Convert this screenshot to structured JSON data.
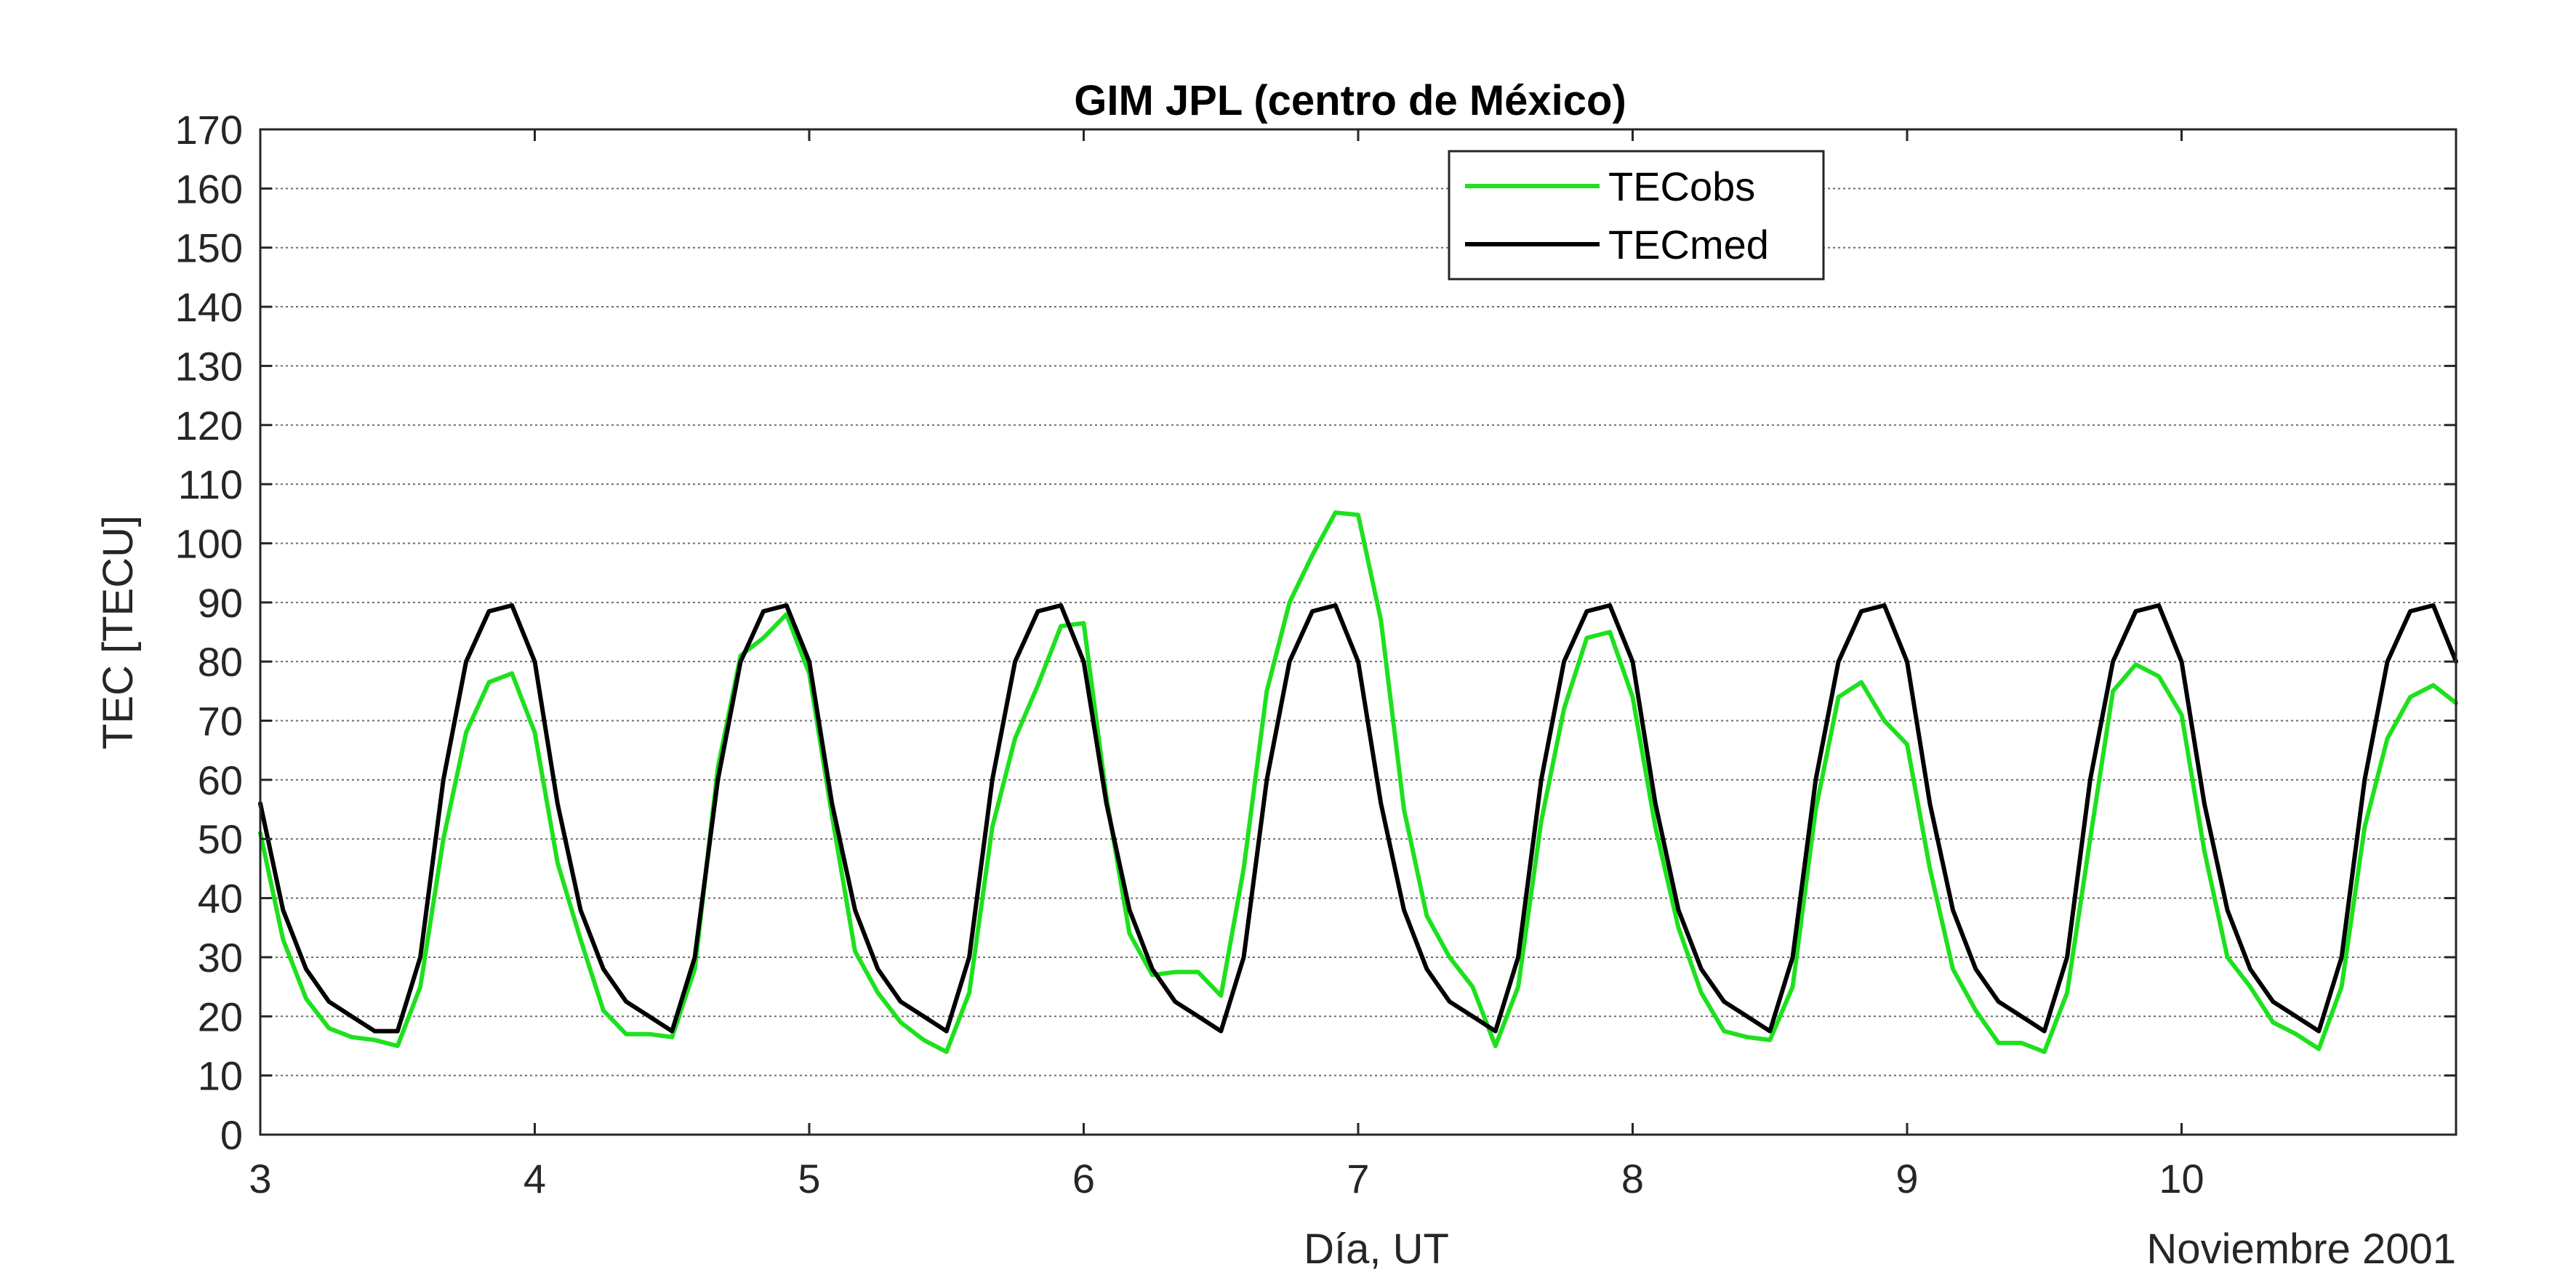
{
  "chart_data": {
    "type": "line",
    "title": "GIM JPL (centro de México)",
    "xlabel": "Día, UT",
    "xlabel_secondary": "Noviembre 2001",
    "ylabel": "TEC [TECU]",
    "xlim": [
      3,
      11
    ],
    "ylim": [
      0,
      170
    ],
    "xticks": [
      3,
      4,
      5,
      6,
      7,
      8,
      9,
      10
    ],
    "yticks": [
      0,
      10,
      20,
      30,
      40,
      50,
      60,
      70,
      80,
      90,
      100,
      110,
      120,
      130,
      140,
      150,
      160,
      170
    ],
    "grid": "horizontal",
    "legend_position": "top-center",
    "series": [
      {
        "name": "TECobs",
        "color": "#1ee01e",
        "x": [
          3.0,
          3.083,
          3.167,
          3.25,
          3.333,
          3.417,
          3.5,
          3.583,
          3.667,
          3.75,
          3.833,
          3.917,
          4.0,
          4.083,
          4.167,
          4.25,
          4.333,
          4.417,
          4.5,
          4.583,
          4.667,
          4.75,
          4.833,
          4.917,
          5.0,
          5.083,
          5.167,
          5.25,
          5.333,
          5.417,
          5.5,
          5.583,
          5.667,
          5.75,
          5.833,
          5.917,
          6.0,
          6.083,
          6.167,
          6.25,
          6.333,
          6.417,
          6.5,
          6.583,
          6.667,
          6.75,
          6.833,
          6.917,
          7.0,
          7.083,
          7.167,
          7.25,
          7.333,
          7.417,
          7.5,
          7.583,
          7.667,
          7.75,
          7.833,
          7.917,
          8.0,
          8.083,
          8.167,
          8.25,
          8.333,
          8.417,
          8.5,
          8.583,
          8.667,
          8.75,
          8.833,
          8.917,
          9.0,
          9.083,
          9.167,
          9.25,
          9.333,
          9.417,
          9.5,
          9.583,
          9.667,
          9.75,
          9.833,
          9.917,
          10.0,
          10.083,
          10.167,
          10.25,
          10.333,
          10.417,
          10.5,
          10.583,
          10.667,
          10.75,
          10.833,
          10.917,
          11.0
        ],
        "y": [
          51,
          33,
          23,
          18,
          16.5,
          16,
          15,
          25,
          50,
          68,
          76.5,
          78,
          68,
          46,
          33,
          21,
          17,
          17,
          16.5,
          28,
          62,
          81,
          84,
          88,
          78,
          54,
          31,
          24,
          19,
          16,
          14,
          24,
          52,
          67,
          76,
          86,
          86.5,
          57,
          34,
          27,
          27.5,
          27.5,
          23.5,
          45,
          75,
          90,
          98,
          105.2,
          104.8,
          87,
          55,
          37,
          30,
          25,
          15,
          25,
          53,
          72,
          84,
          85,
          74,
          52,
          35,
          24,
          17.5,
          16.5,
          16,
          25,
          55,
          74,
          76.5,
          70,
          66,
          45,
          28,
          21,
          15.5,
          15.5,
          14,
          24,
          50,
          75,
          79.5,
          77.5,
          71,
          48,
          30,
          25,
          19,
          17,
          14.5,
          25,
          52,
          67,
          74,
          76,
          73
        ]
      },
      {
        "name": "TECmed",
        "color": "#000000",
        "x": [
          3.0,
          3.083,
          3.167,
          3.25,
          3.333,
          3.417,
          3.5,
          3.583,
          3.667,
          3.75,
          3.833,
          3.917,
          4.0,
          4.083,
          4.167,
          4.25,
          4.333,
          4.417,
          4.5,
          4.583,
          4.667,
          4.75,
          4.833,
          4.917,
          5.0,
          5.083,
          5.167,
          5.25,
          5.333,
          5.417,
          5.5,
          5.583,
          5.667,
          5.75,
          5.833,
          5.917,
          6.0,
          6.083,
          6.167,
          6.25,
          6.333,
          6.417,
          6.5,
          6.583,
          6.667,
          6.75,
          6.833,
          6.917,
          7.0,
          7.083,
          7.167,
          7.25,
          7.333,
          7.417,
          7.5,
          7.583,
          7.667,
          7.75,
          7.833,
          7.917,
          8.0,
          8.083,
          8.167,
          8.25,
          8.333,
          8.417,
          8.5,
          8.583,
          8.667,
          8.75,
          8.833,
          8.917,
          9.0,
          9.083,
          9.167,
          9.25,
          9.333,
          9.417,
          9.5,
          9.583,
          9.667,
          9.75,
          9.833,
          9.917,
          10.0,
          10.083,
          10.167,
          10.25,
          10.333,
          10.417,
          10.5,
          10.583,
          10.667,
          10.75,
          10.833,
          10.917,
          11.0
        ],
        "y": [
          56,
          38,
          28,
          22.5,
          20,
          17.5,
          17.5,
          30,
          60,
          80,
          88.5,
          89.5,
          80,
          56,
          38,
          28,
          22.5,
          20,
          17.5,
          30,
          60,
          80,
          88.5,
          89.5,
          80,
          56,
          38,
          28,
          22.5,
          20,
          17.5,
          30,
          60,
          80,
          88.5,
          89.5,
          80,
          56,
          38,
          28,
          22.5,
          20,
          17.5,
          30,
          60,
          80,
          88.5,
          89.5,
          80,
          56,
          38,
          28,
          22.5,
          20,
          17.5,
          30,
          60,
          80,
          88.5,
          89.5,
          80,
          56,
          38,
          28,
          22.5,
          20,
          17.5,
          30,
          60,
          80,
          88.5,
          89.5,
          80,
          56,
          38,
          28,
          22.5,
          20,
          17.5,
          30,
          60,
          80,
          88.5,
          89.5,
          80,
          56,
          38,
          28,
          22.5,
          20,
          17.5,
          30,
          60,
          80,
          88.5,
          89.5,
          80
        ]
      }
    ]
  }
}
